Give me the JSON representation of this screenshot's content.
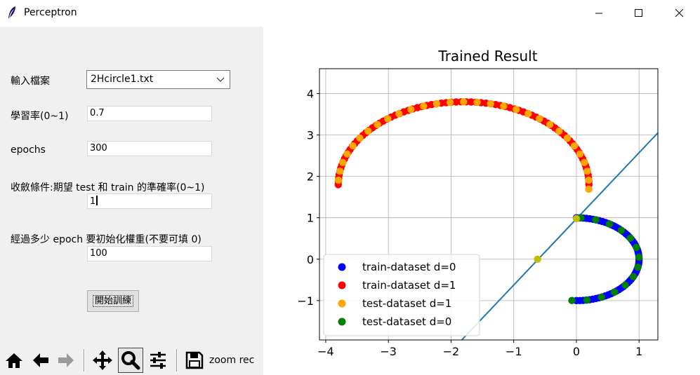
{
  "window": {
    "title": "Perceptron",
    "icon": "feather-icon",
    "controls": [
      "minimize-icon",
      "maximize-icon",
      "close-icon"
    ]
  },
  "form": {
    "file_label": "輸入檔案",
    "file_value": "2Hcircle1.txt",
    "lr_label": "學習率(0~1)",
    "lr_value": "0.7",
    "epochs_label": "epochs",
    "epochs_value": "300",
    "converge_label": "收斂條件:期望 test 和 train 的準確率(0~1)",
    "converge_value": "1",
    "reinit_label": "經過多少 epoch 要初始化權重(不要可填 0)",
    "reinit_value": "100",
    "train_button": "開始訓練"
  },
  "toolbar": {
    "icons": [
      "home-icon",
      "back-arrow-icon",
      "forward-arrow-icon",
      "pan-move-icon",
      "zoom-magnifier-icon",
      "configure-subplots-icon",
      "save-floppy-icon"
    ],
    "message": "zoom rec"
  },
  "chart_data": {
    "type": "scatter",
    "title": "Trained Result",
    "xlim": [
      -4.1,
      1.3
    ],
    "ylim": [
      -1.95,
      4.6
    ],
    "x_ticks": [
      -4,
      -3,
      -2,
      -1,
      0,
      1
    ],
    "y_ticks": [
      -1,
      0,
      1,
      2,
      3,
      4
    ],
    "tick_labels_x": [
      "−4",
      "−3",
      "−2",
      "−1",
      "0",
      "1"
    ],
    "tick_labels_y": [
      "−1",
      "0",
      "1",
      "2",
      "3",
      "4"
    ],
    "grid": true,
    "legend_position": "lower-left",
    "series": [
      {
        "name": "train-dataset d=0",
        "color": "#0000ff",
        "shape": "lower-half-circle",
        "center": [
          0.0,
          0.0
        ],
        "radius": 1.0,
        "count": 60
      },
      {
        "name": "train-dataset d=1",
        "color": "#ff0000",
        "shape": "upper-half-circle",
        "center": [
          -1.8,
          1.8
        ],
        "radius": 2.0,
        "count": 80
      },
      {
        "name": "test-dataset d=1",
        "color": "#ffa500",
        "shape": "upper-half-circle",
        "center": [
          -1.8,
          1.8
        ],
        "radius": 2.0,
        "count": 30
      },
      {
        "name": "test-dataset d=0",
        "color": "#008000",
        "shape": "lower-half-circle",
        "center": [
          0.0,
          0.0
        ],
        "radius": 1.0,
        "count": 14
      }
    ],
    "decision_line": {
      "color": "#1f77b4",
      "points": [
        [
          -1.83,
          -1.95
        ],
        [
          1.3,
          3.05
        ]
      ]
    },
    "weight_points": {
      "color": "#bfbf00",
      "points": [
        [
          -0.62,
          0.0
        ],
        [
          0.0,
          0.98
        ]
      ]
    }
  }
}
